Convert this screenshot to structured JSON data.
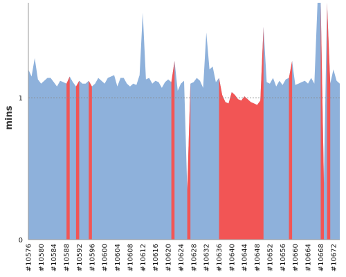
{
  "chart_data": {
    "type": "area",
    "title": "",
    "xlabel": "",
    "ylabel": "mins",
    "ylim": [
      0,
      1.67
    ],
    "yticks": [
      0,
      1
    ],
    "grid": "dashed horizontal line at 1",
    "x": [
      "#10576",
      "#10577",
      "#10578",
      "#10579",
      "#10580",
      "#10581",
      "#10582",
      "#10583",
      "#10584",
      "#10585",
      "#10586",
      "#10587",
      "#10588",
      "#10589",
      "#10590",
      "#10591",
      "#10592",
      "#10593",
      "#10594",
      "#10595",
      "#10596",
      "#10597",
      "#10598",
      "#10599",
      "#10600",
      "#10601",
      "#10602",
      "#10603",
      "#10604",
      "#10605",
      "#10606",
      "#10607",
      "#10608",
      "#10609",
      "#10610",
      "#10611",
      "#10612",
      "#10613",
      "#10614",
      "#10615",
      "#10616",
      "#10617",
      "#10618",
      "#10619",
      "#10620",
      "#10621",
      "#10622",
      "#10623",
      "#10624",
      "#10625",
      "#10626",
      "#10627",
      "#10628",
      "#10629",
      "#10630",
      "#10631",
      "#10632",
      "#10633",
      "#10634",
      "#10635",
      "#10636",
      "#10637",
      "#10638",
      "#10639",
      "#10640",
      "#10641",
      "#10642",
      "#10643",
      "#10644",
      "#10645",
      "#10646",
      "#10647",
      "#10648",
      "#10649",
      "#10650",
      "#10651",
      "#10652",
      "#10653",
      "#10654",
      "#10655",
      "#10656",
      "#10657",
      "#10658",
      "#10659",
      "#10660",
      "#10661",
      "#10662",
      "#10663",
      "#10664",
      "#10665",
      "#10666",
      "#10667",
      "#10668",
      "#10669",
      "#10670",
      "#10671",
      "#10672",
      "#10673",
      "#10674"
    ],
    "x_tick_labels": [
      "#10576",
      "#10580",
      "#10584",
      "#10588",
      "#10592",
      "#10596",
      "#10600",
      "#10604",
      "#10608",
      "#10612",
      "#10616",
      "#10620",
      "#10624",
      "#10628",
      "#10632",
      "#10636",
      "#10640",
      "#10644",
      "#10648",
      "#10652",
      "#10656",
      "#10660",
      "#10664",
      "#10668",
      "#10672"
    ],
    "values": [
      1.2,
      1.15,
      1.28,
      1.13,
      1.1,
      1.12,
      1.14,
      1.14,
      1.11,
      1.08,
      1.12,
      1.11,
      1.1,
      1.15,
      1.11,
      1.08,
      1.12,
      1.1,
      1.1,
      1.12,
      1.08,
      1.1,
      1.14,
      1.12,
      1.1,
      1.14,
      1.15,
      1.16,
      1.08,
      1.14,
      1.14,
      1.1,
      1.08,
      1.1,
      1.09,
      1.16,
      1.6,
      1.13,
      1.14,
      1.1,
      1.12,
      1.11,
      1.07,
      1.11,
      1.13,
      1.11,
      1.26,
      1.05,
      1.1,
      1.12,
      0.35,
      1.1,
      1.11,
      1.14,
      1.12,
      1.07,
      1.46,
      1.2,
      1.22,
      1.11,
      1.14,
      1.02,
      0.97,
      0.96,
      1.04,
      1.02,
      0.99,
      0.98,
      1.01,
      0.99,
      0.97,
      0.96,
      0.95,
      0.98,
      1.5,
      1.11,
      1.1,
      1.14,
      1.08,
      1.12,
      1.09,
      1.13,
      1.14,
      1.26,
      1.09,
      1.1,
      1.11,
      1.12,
      1.1,
      1.14,
      1.1,
      1.8,
      1.8,
      0.4,
      1.8,
      1.1,
      1.2,
      1.12,
      1.1
    ],
    "series_colors": {
      "normal": "#8eb1db",
      "highlight": "#f25555"
    },
    "highlight_ranges": [
      {
        "from": "#10588",
        "to": "#10589"
      },
      {
        "from": "#10591",
        "to": "#10592"
      },
      {
        "from": "#10595",
        "to": "#10596"
      },
      {
        "from": "#10621",
        "to": "#10622"
      },
      {
        "from": "#10626",
        "to": "#10627"
      },
      {
        "from": "#10636",
        "to": "#10650"
      },
      {
        "from": "#10658",
        "to": "#10659"
      },
      {
        "from": "#10668",
        "to": "#10669"
      },
      {
        "from": "#10670",
        "to": "#10671"
      }
    ],
    "legend": "none"
  }
}
